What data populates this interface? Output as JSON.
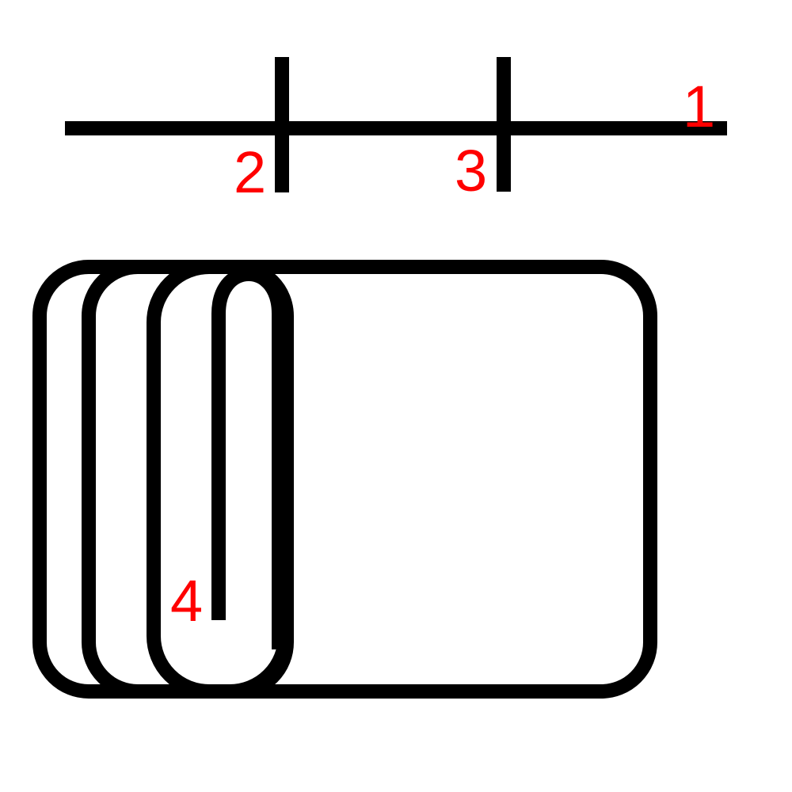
{
  "diagram": {
    "labels": {
      "label_1": "1",
      "label_2": "2",
      "label_3": "3",
      "label_4": "4"
    },
    "colors": {
      "stroke": "#000000",
      "label": "#ff0000",
      "background": "#ffffff"
    }
  }
}
